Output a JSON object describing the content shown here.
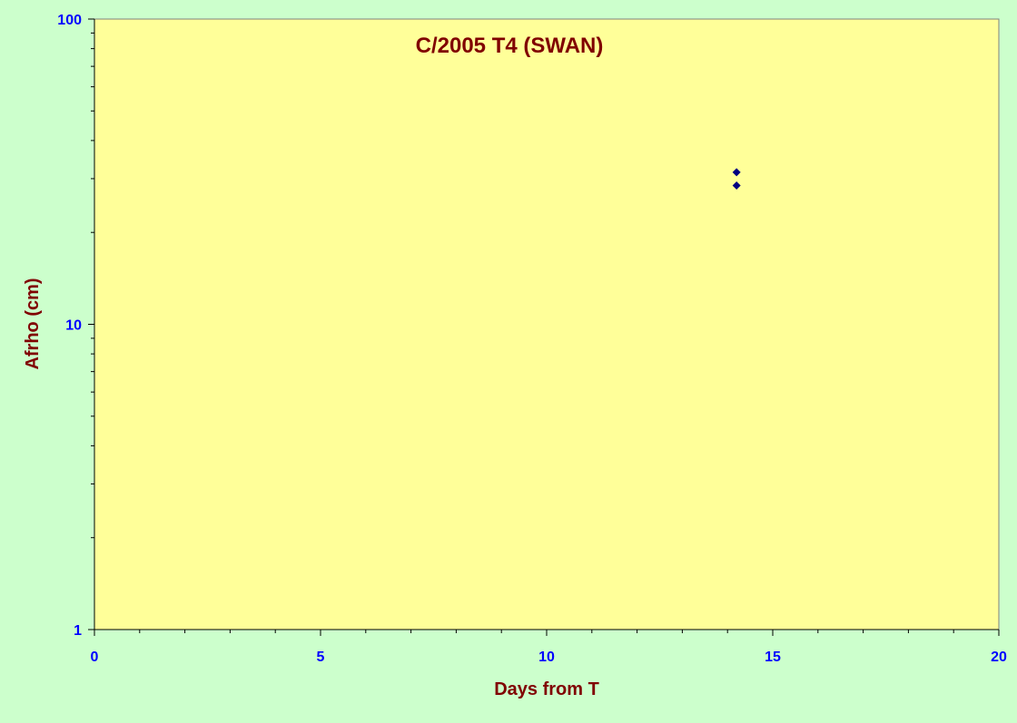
{
  "chart_data": {
    "type": "scatter",
    "title": "C/2005 T4 (SWAN)",
    "xlabel": "Days from T",
    "ylabel": "Afrho (cm)",
    "xlim": [
      0,
      20
    ],
    "ylim": [
      1,
      100
    ],
    "yscale": "log",
    "x_ticks": [
      0,
      5,
      10,
      15,
      20
    ],
    "x_tick_labels": [
      "0",
      "5",
      "10",
      "15",
      "20"
    ],
    "y_ticks": [
      1,
      10,
      100
    ],
    "y_tick_labels": [
      "1",
      "10",
      "100"
    ],
    "grid": false,
    "legend": "none",
    "series": [
      {
        "points": [
          {
            "x": 14.2,
            "y": 31.5
          },
          {
            "x": 14.2,
            "y": 28.5
          }
        ]
      }
    ],
    "colors": {
      "page_background": "#ccffcc",
      "plot_background": "#ffff99",
      "title": "#800000",
      "axis_label": "#800000",
      "tick_label": "#0000ff",
      "marker": "#000080",
      "axis_line": "#808080"
    }
  }
}
